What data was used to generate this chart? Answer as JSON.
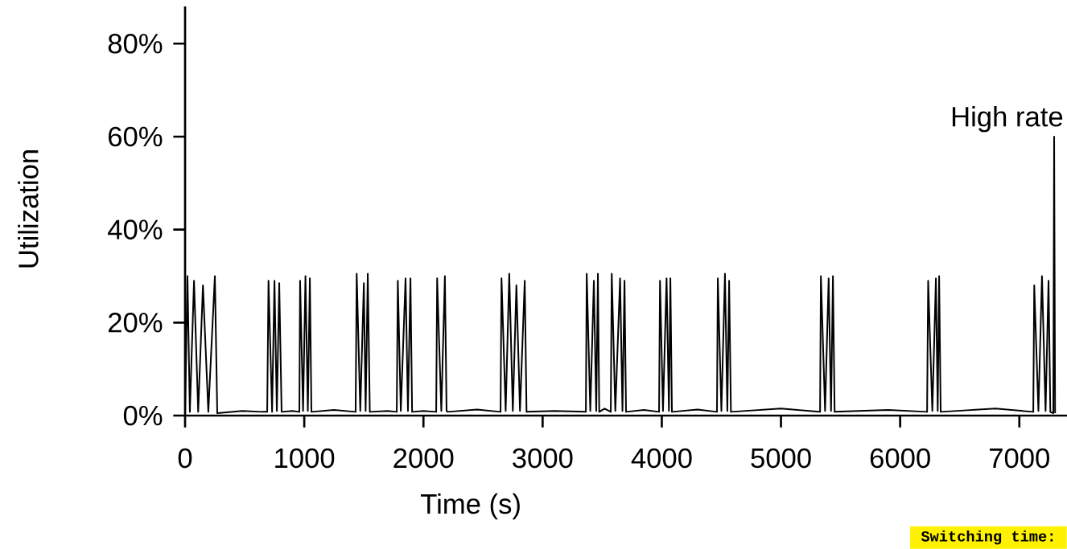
{
  "chart_data": {
    "type": "line",
    "xlabel": "Time (s)",
    "ylabel": "Utilization",
    "xlim": [
      0,
      7400
    ],
    "ylim": [
      0,
      88
    ],
    "xticks": [
      0,
      1000,
      2000,
      3000,
      4000,
      5000,
      6000,
      7000
    ],
    "yticks": [
      {
        "value": 0,
        "label": "0%"
      },
      {
        "value": 20,
        "label": "20%"
      },
      {
        "value": 40,
        "label": "40%"
      },
      {
        "value": 60,
        "label": "60%"
      },
      {
        "value": 80,
        "label": "80%"
      }
    ],
    "grid": false,
    "marker": "none",
    "line_style": "solid",
    "annotations": [
      {
        "text": "High rate",
        "x": 7292,
        "y": 60
      },
      "Switching time:"
    ],
    "series": [
      {
        "color": "#000000",
        "x": [
          0,
          20,
          40,
          75,
          110,
          150,
          195,
          250,
          270,
          480,
          650,
          689,
          700,
          730,
          750,
          770,
          790,
          810,
          900,
          959,
          965,
          990,
          1010,
          1030,
          1047,
          1060,
          1250,
          1431,
          1440,
          1470,
          1500,
          1515,
          1533,
          1550,
          1700,
          1776,
          1785,
          1810,
          1850,
          1870,
          1891,
          1905,
          2000,
          2107,
          2115,
          2150,
          2180,
          2194,
          2205,
          2450,
          2647,
          2655,
          2690,
          2720,
          2750,
          2780,
          2810,
          2850,
          2865,
          3100,
          3363,
          3370,
          3400,
          3430,
          3450,
          3464,
          3475,
          3520,
          3572,
          3580,
          3610,
          3650,
          3670,
          3687,
          3700,
          3850,
          3977,
          3985,
          4010,
          4040,
          4060,
          4072,
          4085,
          4300,
          4463,
          4470,
          4500,
          4530,
          4550,
          4565,
          4580,
          5000,
          5328,
          5335,
          5370,
          5400,
          5420,
          5436,
          5450,
          5900,
          6226,
          6235,
          6270,
          6300,
          6315,
          6327,
          6340,
          6800,
          7117,
          7125,
          7160,
          7190,
          7220,
          7245,
          7260,
          7285,
          7292,
          7300
        ],
        "values": [
          0.5,
          30,
          0.8,
          29,
          0.8,
          28,
          0.8,
          30,
          0.5,
          1,
          0.8,
          0.8,
          29,
          0.8,
          29,
          1,
          28.5,
          0.8,
          1,
          0.8,
          29,
          1,
          30,
          1,
          29.5,
          0.8,
          1.2,
          0.8,
          30.5,
          1,
          28.5,
          1,
          30.5,
          0.8,
          1,
          0.8,
          29,
          1,
          29.5,
          1,
          29.5,
          0.8,
          1,
          0.8,
          29.5,
          1,
          30,
          1,
          0.8,
          1.3,
          0.8,
          29.5,
          1,
          30.5,
          1,
          28,
          1,
          29,
          0.8,
          1,
          0.8,
          30.5,
          1,
          29,
          1,
          30.5,
          0.8,
          1.5,
          0.8,
          30.5,
          1,
          29.5,
          1,
          29,
          0.8,
          1.2,
          0.8,
          29,
          1,
          29.5,
          1,
          29.5,
          0.8,
          1.3,
          0.8,
          29.5,
          1,
          30.5,
          1,
          29,
          0.8,
          1.5,
          0.8,
          30,
          1,
          29.5,
          1,
          30,
          0.8,
          1.2,
          0.8,
          29,
          1,
          29.5,
          1,
          30,
          0.8,
          1.5,
          0.8,
          28,
          1,
          30,
          1,
          29,
          0.8,
          0.5,
          60,
          0.5
        ]
      }
    ]
  }
}
